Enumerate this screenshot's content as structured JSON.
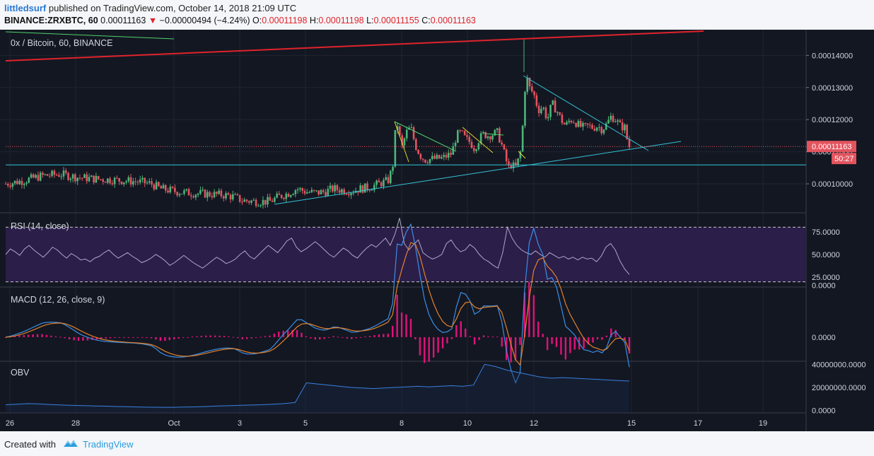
{
  "header": {
    "author": "littledsurf",
    "published_text": "published on TradingView.com, October 14, 2018 21:09 UTC",
    "symbol": "BINANCE:ZRXBTC, 60",
    "last": "0.00011163",
    "change": "−0.00000494 (−4.24%)",
    "o_label": "O:",
    "o": "0.00011198",
    "h_label": "H:",
    "h": "0.00011198",
    "l_label": "L:",
    "l": "0.00011155",
    "c_label": "C:",
    "c": "0.00011163"
  },
  "footer": {
    "created_with": "Created with",
    "brand": "TradingView"
  },
  "chart_data": [
    {
      "type": "candlestick",
      "title": "0x / Bitcoin, 60, BINANCE",
      "ylim": [
        9.12e-05,
        0.000148
      ],
      "yticks": [
        0.0001,
        0.00011,
        0.00012,
        0.00013,
        0.00014
      ],
      "ytick_labels": [
        "0.00010000",
        "0.00011000",
        "0.00012000",
        "0.00013000",
        "0.00014000"
      ],
      "last_price_label": "0.00011163",
      "countdown_label": "50:27",
      "close_path": [
        [
          0,
          0.0001
        ],
        [
          4,
          0.000101
        ],
        [
          8,
          0.0001025
        ],
        [
          12,
          0.000103
        ],
        [
          16,
          0.000102
        ],
        [
          20,
          0.0001015
        ],
        [
          24,
          0.0001012
        ],
        [
          28,
          0.0001008
        ],
        [
          30,
          0.0001005
        ],
        [
          32,
          0.0001
        ],
        [
          34,
          9.85e-05
        ],
        [
          36,
          9.8e-05
        ],
        [
          38,
          9.75e-05
        ],
        [
          40,
          9.72e-05
        ],
        [
          42,
          9.7e-05
        ],
        [
          45,
          9.68e-05
        ],
        [
          48,
          9.65e-05
        ],
        [
          50,
          9.6e-05
        ],
        [
          52,
          9.48e-05
        ],
        [
          55,
          9.45e-05
        ],
        [
          58,
          9.45e-05
        ],
        [
          60,
          9.6e-05
        ],
        [
          62,
          9.7e-05
        ],
        [
          64,
          9.85e-05
        ],
        [
          66,
          9.75e-05
        ],
        [
          68,
          9.72e-05
        ],
        [
          70,
          9.75e-05
        ],
        [
          72,
          9.85e-05
        ],
        [
          74,
          9.8e-05
        ],
        [
          76,
          9.78e-05
        ],
        [
          78,
          9.85e-05
        ],
        [
          80,
          9.9e-05
        ],
        [
          82,
          0.0001
        ],
        [
          84,
          0.000101
        ],
        [
          85,
          0.000105
        ],
        [
          85.5,
          0.000115
        ],
        [
          86,
          0.000119
        ],
        [
          86.5,
          0.000115
        ],
        [
          87,
          0.000111
        ],
        [
          88,
          0.000116
        ],
        [
          89,
          0.0001175
        ],
        [
          90,
          0.000112
        ],
        [
          91,
          0.000109
        ],
        [
          92,
          0.0001075
        ],
        [
          94,
          0.0001078
        ],
        [
          96,
          0.000108
        ],
        [
          98,
          0.0001095
        ],
        [
          99,
          0.000115
        ],
        [
          100,
          0.000116
        ],
        [
          101,
          0.000114
        ],
        [
          102,
          0.000113
        ],
        [
          103,
          0.000111
        ],
        [
          104,
          0.000114
        ],
        [
          105,
          0.0001155
        ],
        [
          106,
          0.000115
        ],
        [
          108,
          0.000116
        ],
        [
          109,
          0.000112
        ],
        [
          110,
          0.000107
        ],
        [
          110.5,
          0.000105
        ],
        [
          111,
          0.000106
        ],
        [
          112,
          0.000105
        ],
        [
          112.5,
          0.000107
        ],
        [
          113,
          0.000109
        ],
        [
          113.5,
          0.000116
        ],
        [
          114,
          0.000129
        ],
        [
          114.5,
          0.000133
        ],
        [
          115,
          0.00013
        ],
        [
          116,
          0.000128
        ],
        [
          117,
          0.000123
        ],
        [
          118,
          0.000124
        ],
        [
          119,
          0.00012
        ],
        [
          120,
          0.000125
        ],
        [
          121,
          0.000123
        ],
        [
          122,
          0.00012
        ],
        [
          123,
          0.000118
        ],
        [
          124,
          0.00012
        ],
        [
          125,
          0.0001195
        ],
        [
          126,
          0.000118
        ],
        [
          127,
          0.0001175
        ],
        [
          128,
          0.000118
        ],
        [
          129,
          0.0001175
        ],
        [
          130,
          0.000118
        ],
        [
          131,
          0.000117
        ],
        [
          132,
          0.0001185
        ],
        [
          133,
          0.000121
        ],
        [
          134,
          0.00012
        ],
        [
          135,
          0.000118
        ],
        [
          136,
          0.0001175
        ],
        [
          136.5,
          0.000114
        ],
        [
          137,
          0.0001116
        ]
      ],
      "horizontal_line": 0.0001059
    },
    {
      "type": "line",
      "title": "RSI (14, close)",
      "ylim": [
        15,
        95
      ],
      "yticks": [
        25,
        50,
        75
      ],
      "ytick_labels": [
        "25.0000",
        "50.0000",
        "75.0000"
      ],
      "band": [
        20,
        80
      ],
      "values": [
        50,
        56,
        53,
        49,
        56,
        60,
        55,
        51,
        47,
        52,
        58,
        55,
        50,
        46,
        51,
        48,
        44,
        45,
        42,
        46,
        48,
        52,
        55,
        50,
        46,
        49,
        52,
        48,
        45,
        41,
        43,
        46,
        50,
        47,
        43,
        38,
        41,
        45,
        49,
        45,
        41,
        38,
        35,
        39,
        43,
        47,
        44,
        40,
        42,
        45,
        50,
        54,
        48,
        45,
        50,
        55,
        60,
        56,
        52,
        58,
        65,
        68,
        58,
        53,
        56,
        60,
        64,
        60,
        55,
        50,
        47,
        52,
        57,
        54,
        49,
        46,
        52,
        57,
        61,
        58,
        63,
        68,
        60,
        72,
        90,
        62,
        55,
        61,
        66,
        52,
        48,
        45,
        47,
        50,
        62,
        66,
        58,
        53,
        55,
        61,
        57,
        50,
        45,
        42,
        38,
        35,
        52,
        80,
        68,
        60,
        55,
        52,
        50,
        54,
        50,
        47,
        52,
        49,
        46,
        48,
        45,
        47,
        44,
        47,
        45,
        46,
        42,
        48,
        58,
        62,
        55,
        43,
        34,
        28
      ]
    },
    {
      "type": "line",
      "title": "MACD (12, 26, close, 9)",
      "ylim": [
        -1.8e-06,
        3.8e-06
      ],
      "yticks": [
        0.0,
        4e-06
      ],
      "ytick_labels": [
        "0.0000",
        "0.0000"
      ]
    },
    {
      "type": "area",
      "title": "OBV",
      "ylim": [
        -2000000,
        42000000
      ],
      "yticks": [
        0,
        20000000,
        40000000
      ],
      "ytick_labels": [
        "0.0000",
        "20000000.0000",
        "40000000.0000"
      ],
      "values": [
        5000000,
        5500000,
        6000000,
        5800000,
        5200000,
        4800000,
        4500000,
        4300000,
        4000000,
        3800000,
        3500000,
        3300000,
        3000000,
        2900000,
        2800000,
        2800000,
        3000000,
        3200000,
        3500000,
        4000000,
        4200000,
        4500000,
        4800000,
        5000000,
        5500000,
        6000000,
        7000000,
        24000000,
        23000000,
        22000000,
        21000000,
        20000000,
        19500000,
        19000000,
        19500000,
        20000000,
        20500000,
        21000000,
        20500000,
        21000000,
        21500000,
        21000000,
        22000000,
        40000000,
        38000000,
        35000000,
        33000000,
        31000000,
        29000000,
        28000000,
        28500000,
        28000000,
        27500000,
        27000000,
        26500000,
        26000000,
        25500000
      ]
    }
  ],
  "x_axis": {
    "tick_labels": [
      "26",
      "28",
      "Oct",
      "3",
      "5",
      "8",
      "10",
      "12",
      "15",
      "17",
      "19"
    ]
  },
  "colors": {
    "background": "#131722",
    "up": "#4cb579",
    "down": "#e3545f",
    "rsi_line": "#b0a7c8",
    "rsi_band": "#2b1e49",
    "macd_line": "#3a8fe6",
    "signal_line": "#e3822b",
    "histogram": "#e0127a",
    "obv_line": "#3a7fe0",
    "trend_red": "#e0232b",
    "trend_cyan": "#33c4d6",
    "trend_yellow": "#e8d52a",
    "trend_green": "#4ed36a",
    "price_label_bg": "#e3545f"
  }
}
